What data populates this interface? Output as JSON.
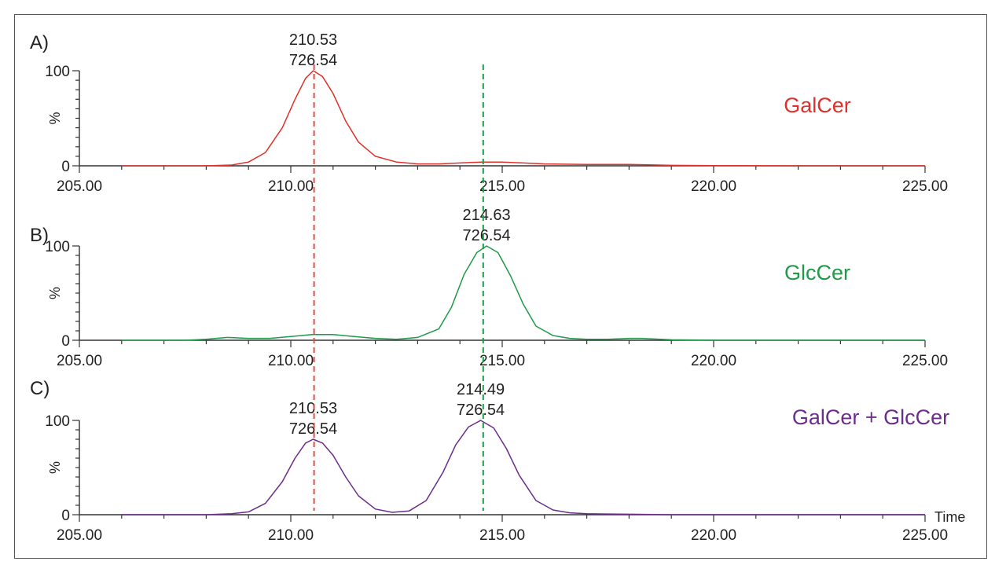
{
  "chart_data": [
    {
      "type": "line",
      "panel": "A)",
      "xlim": [
        205,
        225
      ],
      "ylim": [
        0,
        100
      ],
      "yticks": [
        "100",
        "%",
        "0"
      ],
      "xticks": [
        "205.00",
        "210.00",
        "215.00",
        "220.00",
        "225.00"
      ],
      "series": [
        {
          "name": "GalCer",
          "color": "#e0302b",
          "x": [
            206.0,
            208.0,
            208.6,
            209.0,
            209.4,
            209.8,
            210.1,
            210.35,
            210.53,
            210.75,
            211.0,
            211.3,
            211.6,
            212.0,
            212.5,
            213.0,
            213.5,
            214.0,
            214.5,
            215.0,
            215.5,
            216.0,
            217.0,
            218.0,
            219.0,
            220.0,
            222.0,
            225.0
          ],
          "y": [
            0,
            0,
            0.8,
            4,
            14,
            40,
            70,
            92,
            100,
            94,
            76,
            47,
            25,
            10,
            4,
            2,
            2,
            3,
            4,
            4,
            3,
            2,
            1.5,
            1.5,
            0.5,
            0.2,
            0,
            0
          ]
        }
      ],
      "annotations": [
        {
          "x": 210.53,
          "lines": [
            "210.53",
            "726.54"
          ]
        }
      ]
    },
    {
      "type": "line",
      "panel": "B)",
      "xlim": [
        205,
        225
      ],
      "ylim": [
        0,
        100
      ],
      "yticks": [
        "100",
        "%",
        "0"
      ],
      "xticks": [
        "205.00",
        "210.00",
        "215.00",
        "220.00",
        "225.00"
      ],
      "series": [
        {
          "name": "GlcCer",
          "color": "#1e9a48",
          "x": [
            206.0,
            207.5,
            208.0,
            208.5,
            209.0,
            209.5,
            210.0,
            210.5,
            211.0,
            211.5,
            212.0,
            212.5,
            213.0,
            213.5,
            213.8,
            214.1,
            214.4,
            214.63,
            214.9,
            215.2,
            215.5,
            215.8,
            216.2,
            216.6,
            217.0,
            217.5,
            218.0,
            218.3,
            219.0,
            220.0,
            225.0
          ],
          "y": [
            0,
            0,
            1,
            3,
            2,
            2,
            4,
            6,
            6,
            4,
            2,
            1,
            3,
            12,
            35,
            70,
            93,
            100,
            93,
            68,
            38,
            15,
            5,
            2,
            1,
            1,
            2,
            2,
            0.5,
            0,
            0
          ]
        }
      ],
      "annotations": [
        {
          "x": 214.63,
          "lines": [
            "214.63",
            "726.54"
          ]
        }
      ]
    },
    {
      "type": "line",
      "panel": "C)",
      "xlim": [
        205,
        225
      ],
      "ylim": [
        0,
        100
      ],
      "yticks": [
        "100",
        "%",
        "0"
      ],
      "xticks": [
        "205.00",
        "210.00",
        "215.00",
        "220.00",
        "225.00"
      ],
      "xlabel": "Time",
      "series": [
        {
          "name": "GalCer + GlcCer",
          "color": "#6b2c8c",
          "x": [
            206.0,
            208.0,
            208.6,
            209.0,
            209.4,
            209.8,
            210.1,
            210.35,
            210.53,
            210.75,
            211.0,
            211.3,
            211.6,
            212.0,
            212.4,
            212.8,
            213.2,
            213.6,
            213.9,
            214.2,
            214.49,
            214.8,
            215.1,
            215.4,
            215.8,
            216.2,
            216.6,
            217.0,
            218.0,
            219.0,
            220.0,
            225.0
          ],
          "y": [
            0,
            0,
            1,
            3,
            12,
            35,
            60,
            76,
            80,
            76,
            63,
            40,
            20,
            6,
            2.5,
            4,
            15,
            45,
            74,
            93,
            100,
            92,
            70,
            42,
            15,
            5,
            2,
            1,
            0.5,
            0,
            0,
            0
          ]
        }
      ],
      "annotations": [
        {
          "x": 210.53,
          "lines": [
            "210.53",
            "726.54"
          ]
        },
        {
          "x": 214.49,
          "lines": [
            "214.49",
            "726.54"
          ]
        }
      ]
    }
  ],
  "markers": [
    {
      "x": 210.55,
      "color": "#d9534a"
    },
    {
      "x": 214.55,
      "color": "#1e9a48"
    }
  ]
}
